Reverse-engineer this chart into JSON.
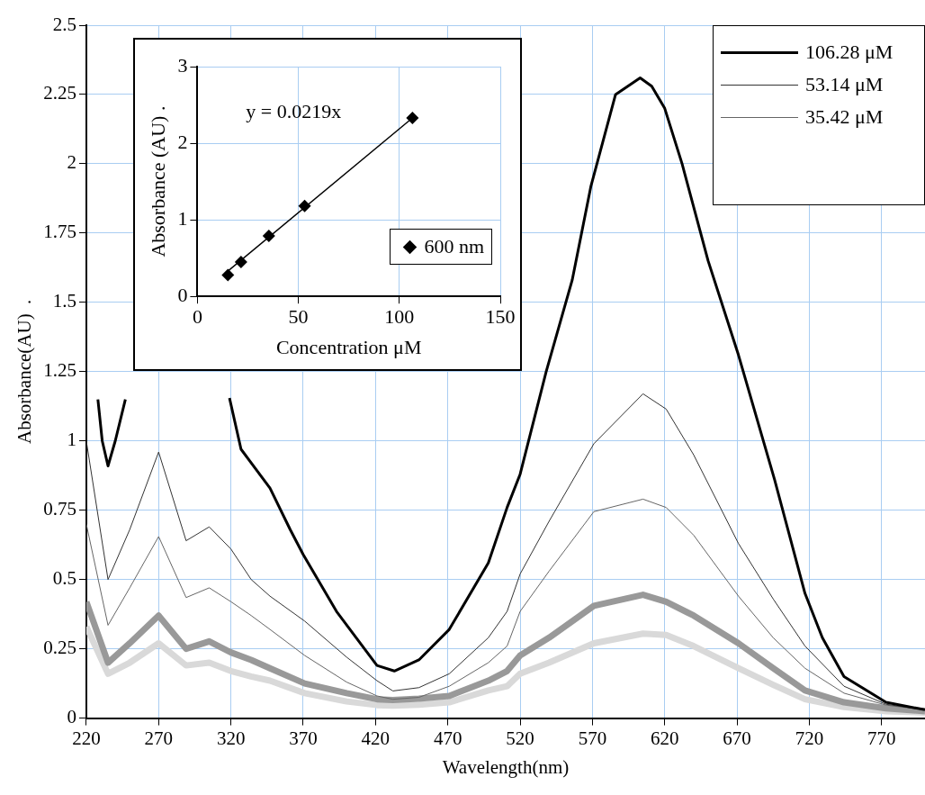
{
  "chart_data": [
    {
      "type": "line",
      "xlabel": "Wavelength(nm)",
      "ylabel": "Absorbance(AU)  .",
      "xlim": [
        220,
        800
      ],
      "xticks": [
        220,
        270,
        320,
        370,
        420,
        470,
        520,
        570,
        620,
        670,
        720,
        770
      ],
      "ylim": [
        0,
        2.5
      ],
      "yticks": [
        0,
        0.25,
        0.5,
        0.75,
        1,
        1.25,
        1.5,
        1.75,
        2,
        2.25,
        2.5
      ],
      "grid": true,
      "legend": "top right",
      "x": [
        220,
        235,
        250,
        270,
        289,
        305,
        320,
        334,
        347,
        371,
        400,
        421,
        432,
        450,
        471,
        498,
        511,
        520,
        540,
        571,
        605,
        621,
        640,
        671,
        695,
        717,
        744,
        773,
        800
      ],
      "series": [
        {
          "name": "106.28 μM",
          "color": "#000000",
          "x": [
            228,
            231,
            235,
            240,
            247,
            283,
            319,
            327,
            347,
            361,
            370,
            393,
            421,
            433,
            450,
            471,
            498,
            511,
            520,
            538,
            556,
            569,
            586,
            603,
            611,
            620,
            632,
            650,
            671,
            696,
            717,
            729,
            744,
            773,
            800
          ],
          "values": [
            1.15,
            1.0,
            0.91,
            1.0,
            1.15,
            null,
            1.155,
            0.97,
            0.83,
            0.68,
            0.59,
            0.385,
            0.19,
            0.17,
            0.21,
            0.32,
            0.56,
            0.76,
            0.88,
            1.25,
            1.58,
            1.92,
            2.25,
            2.31,
            2.28,
            2.2,
            2.0,
            1.65,
            1.31,
            0.86,
            0.45,
            0.29,
            0.15,
            0.057,
            0.03
          ]
        },
        {
          "name": "53.14 μM",
          "color": "#333333",
          "values": [
            1.0,
            0.5,
            0.68,
            0.96,
            0.64,
            0.69,
            0.61,
            0.5,
            0.44,
            0.35,
            0.22,
            0.135,
            0.098,
            0.11,
            0.16,
            0.29,
            0.385,
            0.52,
            0.71,
            0.99,
            1.17,
            1.115,
            0.95,
            0.63,
            0.43,
            0.26,
            0.115,
            0.05,
            0.03
          ]
        },
        {
          "name": "35.42 μM",
          "color": "#666666",
          "values": [
            0.7,
            0.335,
            0.47,
            0.655,
            0.435,
            0.47,
            0.42,
            0.37,
            0.32,
            0.226,
            0.13,
            0.08,
            0.068,
            0.075,
            0.115,
            0.2,
            0.26,
            0.385,
            0.53,
            0.745,
            0.79,
            0.76,
            0.66,
            0.44,
            0.29,
            0.18,
            0.09,
            0.047,
            0.03
          ]
        },
        {
          "color": "#999999",
          "values": [
            0.42,
            0.2,
            0.27,
            0.37,
            0.25,
            0.277,
            0.237,
            0.21,
            0.18,
            0.125,
            0.09,
            0.068,
            0.065,
            0.07,
            0.08,
            0.135,
            0.17,
            0.226,
            0.29,
            0.405,
            0.445,
            0.42,
            0.37,
            0.27,
            0.18,
            0.1,
            0.057,
            0.035,
            0.025
          ]
        },
        {
          "color": "#d9d9d9",
          "values": [
            0.33,
            0.16,
            0.2,
            0.27,
            0.19,
            0.2,
            0.17,
            0.15,
            0.135,
            0.09,
            0.06,
            0.047,
            0.045,
            0.048,
            0.057,
            0.1,
            0.115,
            0.16,
            0.2,
            0.27,
            0.305,
            0.3,
            0.26,
            0.18,
            0.12,
            0.068,
            0.04,
            0.025,
            0.02
          ]
        }
      ]
    },
    {
      "type": "scatter",
      "xlabel": "Concentration μM",
      "ylabel": "Absorbance (AU) .",
      "xlim": [
        0,
        150
      ],
      "xticks": [
        0,
        50,
        100,
        150
      ],
      "ylim": [
        0,
        3
      ],
      "yticks": [
        0,
        1,
        2,
        3
      ],
      "grid": true,
      "legend": "bottom right",
      "annotations": [
        "y = 0.0219x"
      ],
      "series": [
        {
          "name": "600 nm",
          "color": "#000000",
          "marker": "diamond",
          "x": [
            15.1,
            21.6,
            35.4,
            53.1,
            106.5
          ],
          "values": [
            0.28,
            0.45,
            0.79,
            1.18,
            2.33
          ]
        },
        {
          "type": "line",
          "color": "#000000",
          "x": [
            15.1,
            106.5
          ],
          "values": [
            0.33,
            2.33
          ]
        }
      ]
    }
  ]
}
